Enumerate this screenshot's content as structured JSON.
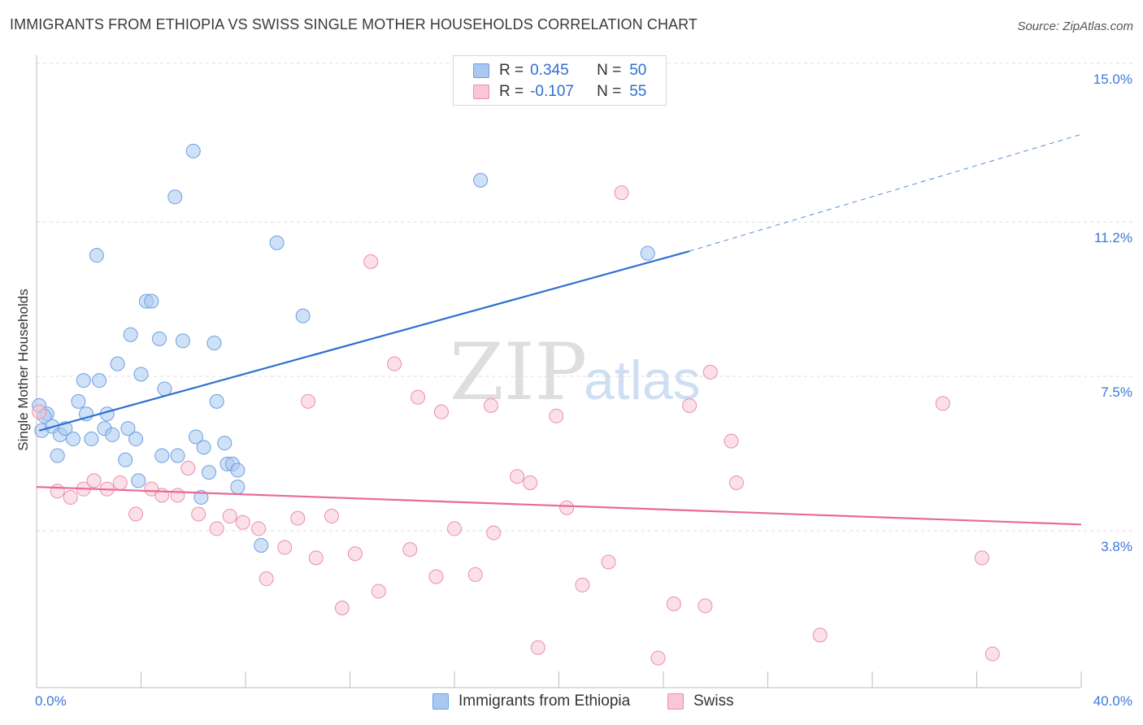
{
  "title": "IMMIGRANTS FROM ETHIOPIA VS SWISS SINGLE MOTHER HOUSEHOLDS CORRELATION CHART",
  "source": "Source: ZipAtlas.com",
  "watermark": {
    "zip": "ZIP",
    "atlas": "atlas"
  },
  "legend_top": {
    "rows": [
      {
        "r_label": "R =",
        "r_value": "0.345",
        "n_label": "N =",
        "n_value": "50",
        "color": "#a8c8f0",
        "border": "#6d9fe0"
      },
      {
        "r_label": "R =",
        "r_value": "-0.107",
        "n_label": "N =",
        "n_value": "55",
        "color": "#f8c6d4",
        "border": "#ea8fac"
      }
    ]
  },
  "chart_data": {
    "type": "scatter",
    "title": "IMMIGRANTS FROM ETHIOPIA VS SWISS SINGLE MOTHER HOUSEHOLDS CORRELATION CHART",
    "xlabel": "",
    "ylabel": "Single Mother Households",
    "xlim": [
      0,
      40
    ],
    "ylim": [
      0,
      15.4
    ],
    "x_tick_labels": [
      "0.0%",
      "40.0%"
    ],
    "y_ticks": [
      {
        "value": 3.8,
        "label": "3.8%"
      },
      {
        "value": 7.5,
        "label": "7.5%"
      },
      {
        "value": 11.2,
        "label": "11.2%"
      },
      {
        "value": 15.0,
        "label": "15.0%"
      }
    ],
    "grid": "horizontal dashed",
    "legend_position": "top-center",
    "series": [
      {
        "name": "Immigrants from Ethiopia",
        "color": "#a8c8f0",
        "stroke": "#6d9fe0",
        "line_color": "#2f6fd0",
        "trend": {
          "x0": 0.1,
          "y0": 6.2,
          "x1": 25.0,
          "y1": 10.5,
          "dash_to_x": 40.0,
          "dash_to_y": 13.3
        },
        "points": [
          [
            0.1,
            6.8
          ],
          [
            0.2,
            6.2
          ],
          [
            0.4,
            6.6
          ],
          [
            0.6,
            6.3
          ],
          [
            0.8,
            5.6
          ],
          [
            0.9,
            6.1
          ],
          [
            1.1,
            6.25
          ],
          [
            1.4,
            6.0
          ],
          [
            1.6,
            6.9
          ],
          [
            1.8,
            7.4
          ],
          [
            1.9,
            6.6
          ],
          [
            2.1,
            6.0
          ],
          [
            2.3,
            10.4
          ],
          [
            2.4,
            7.4
          ],
          [
            2.6,
            6.25
          ],
          [
            2.7,
            6.6
          ],
          [
            2.9,
            6.1
          ],
          [
            3.1,
            7.8
          ],
          [
            3.4,
            5.5
          ],
          [
            3.5,
            6.25
          ],
          [
            3.6,
            8.5
          ],
          [
            3.8,
            6.0
          ],
          [
            3.9,
            5.0
          ],
          [
            4.0,
            7.55
          ],
          [
            4.2,
            9.3
          ],
          [
            4.4,
            9.3
          ],
          [
            4.7,
            8.4
          ],
          [
            4.8,
            5.6
          ],
          [
            4.9,
            7.2
          ],
          [
            5.3,
            11.8
          ],
          [
            5.4,
            5.6
          ],
          [
            5.6,
            8.35
          ],
          [
            6.0,
            12.9
          ],
          [
            6.1,
            6.05
          ],
          [
            6.4,
            5.8
          ],
          [
            6.3,
            4.6
          ],
          [
            6.6,
            5.2
          ],
          [
            6.8,
            8.3
          ],
          [
            6.9,
            6.9
          ],
          [
            7.2,
            5.9
          ],
          [
            7.3,
            5.4
          ],
          [
            7.5,
            5.4
          ],
          [
            7.7,
            4.85
          ],
          [
            7.7,
            5.25
          ],
          [
            8.6,
            3.45
          ],
          [
            9.2,
            10.7
          ],
          [
            10.2,
            8.95
          ],
          [
            17.0,
            12.2
          ],
          [
            23.4,
            10.45
          ],
          [
            0.3,
            6.55
          ]
        ]
      },
      {
        "name": "Swiss",
        "color": "#f8c6d4",
        "stroke": "#ea8fac",
        "line_color": "#e86a95",
        "trend": {
          "x0": 0.0,
          "y0": 4.85,
          "x1": 40.0,
          "y1": 3.95
        },
        "points": [
          [
            0.1,
            6.65
          ],
          [
            0.8,
            4.75
          ],
          [
            1.3,
            4.6
          ],
          [
            1.8,
            4.8
          ],
          [
            2.2,
            5.0
          ],
          [
            2.7,
            4.8
          ],
          [
            3.2,
            4.95
          ],
          [
            3.8,
            4.2
          ],
          [
            4.4,
            4.8
          ],
          [
            4.8,
            4.65
          ],
          [
            5.4,
            4.65
          ],
          [
            5.8,
            5.3
          ],
          [
            6.2,
            4.2
          ],
          [
            6.9,
            3.85
          ],
          [
            7.4,
            4.15
          ],
          [
            7.9,
            4.0
          ],
          [
            8.5,
            3.85
          ],
          [
            8.8,
            2.65
          ],
          [
            9.5,
            3.4
          ],
          [
            10.0,
            4.1
          ],
          [
            10.4,
            6.9
          ],
          [
            10.7,
            3.15
          ],
          [
            11.3,
            4.15
          ],
          [
            11.7,
            1.95
          ],
          [
            12.2,
            3.25
          ],
          [
            12.8,
            10.25
          ],
          [
            13.1,
            2.35
          ],
          [
            13.7,
            7.8
          ],
          [
            14.3,
            3.35
          ],
          [
            14.6,
            7.0
          ],
          [
            15.3,
            2.7
          ],
          [
            15.5,
            6.65
          ],
          [
            16.0,
            3.85
          ],
          [
            16.8,
            2.75
          ],
          [
            17.4,
            6.8
          ],
          [
            17.5,
            3.75
          ],
          [
            18.4,
            5.1
          ],
          [
            18.9,
            4.95
          ],
          [
            19.2,
            1.0
          ],
          [
            19.9,
            6.55
          ],
          [
            20.3,
            4.35
          ],
          [
            20.9,
            2.5
          ],
          [
            21.9,
            3.05
          ],
          [
            22.4,
            11.9
          ],
          [
            23.8,
            0.75
          ],
          [
            24.4,
            2.05
          ],
          [
            25.0,
            6.8
          ],
          [
            25.6,
            2.0
          ],
          [
            25.8,
            7.6
          ],
          [
            26.6,
            5.95
          ],
          [
            26.8,
            4.95
          ],
          [
            30.0,
            1.3
          ],
          [
            34.7,
            6.85
          ],
          [
            36.2,
            3.15
          ],
          [
            36.6,
            0.85
          ]
        ]
      }
    ]
  }
}
